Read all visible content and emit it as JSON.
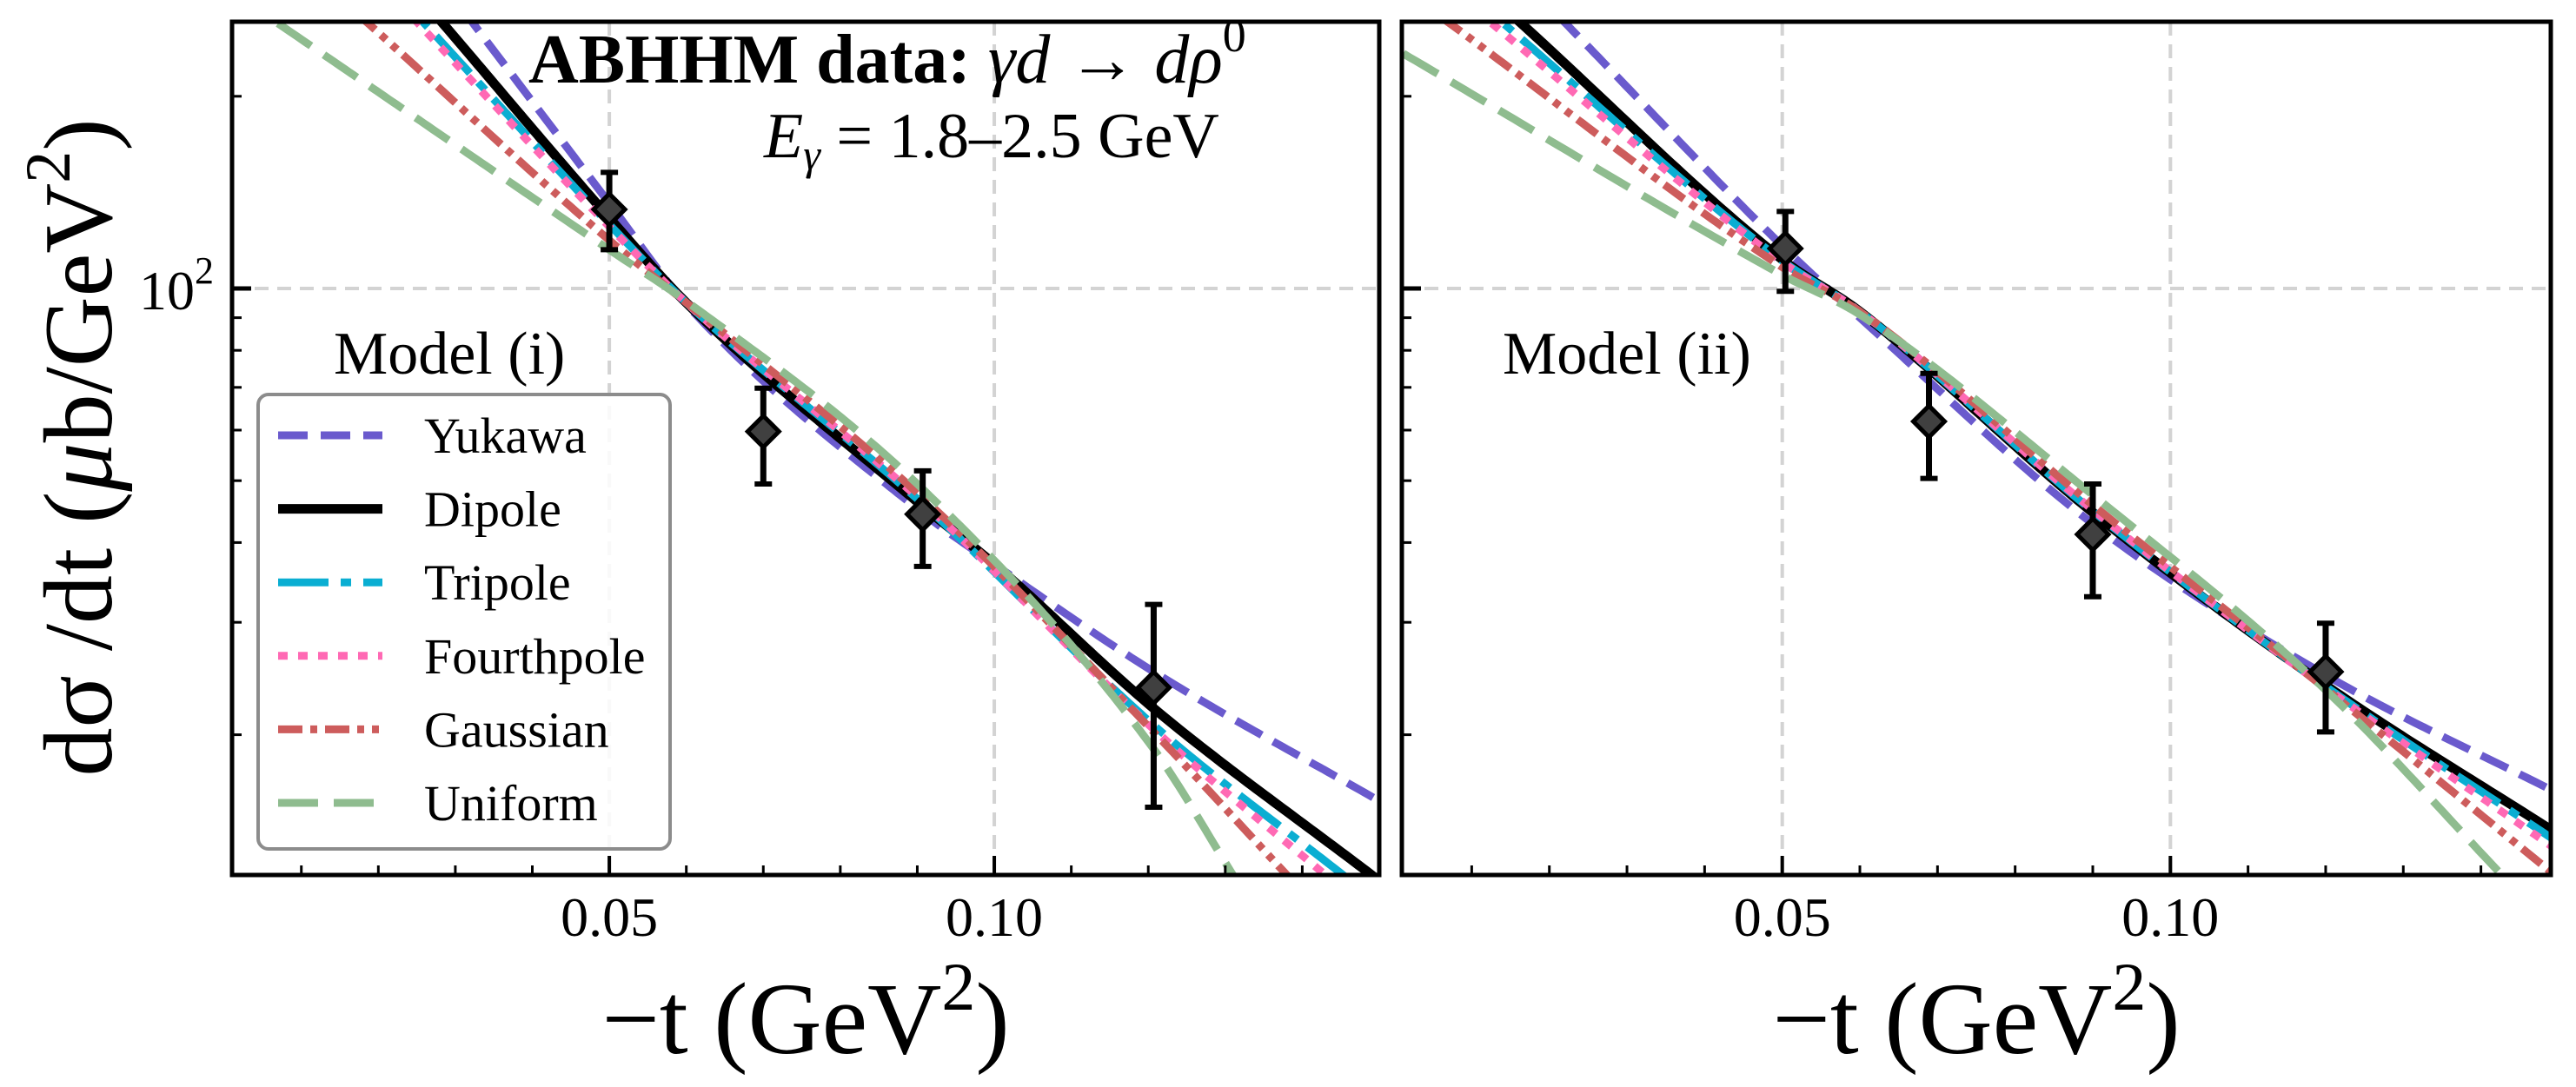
{
  "figure": {
    "title": {
      "bold": "ABHHM data:",
      "math": " γd → dρ",
      "sup": "0"
    },
    "energy": {
      "E": "E",
      "sub": "γ",
      "rest": " = 1.8–2.5 GeV"
    },
    "ylabel": {
      "pre": "dσ /dt (",
      "mu": "μ",
      "post": "b/GeV",
      "sup": "2",
      "close": ")"
    },
    "xlabel": {
      "main": "−t (GeV",
      "sup": "2",
      "close": ")"
    },
    "ytick_label": {
      "base": "10",
      "exp": "2"
    },
    "legend": {
      "entries": [
        {
          "label": "Yukawa",
          "color": "#6a5acd",
          "style": "dashed"
        },
        {
          "label": "Dipole",
          "color": "#000000",
          "style": "solid"
        },
        {
          "label": "Tripole",
          "color": "#0aaed2",
          "style": "dashdot"
        },
        {
          "label": "Fourthpole",
          "color": "#ff69b4",
          "style": "dotted"
        },
        {
          "label": "Gaussian",
          "color": "#cd5c5c",
          "style": "dashdotdot"
        },
        {
          "label": "Uniform",
          "color": "#8fbc8f",
          "style": "longdash"
        }
      ]
    },
    "colors": {
      "frame": "#000000",
      "grid": "#d3d3d3",
      "legend_border": "#8c8c8c",
      "marker_fill": "#404040",
      "marker_edge": "#000000"
    }
  },
  "chart_data": [
    {
      "type": "line",
      "panel": "left",
      "annotation": "Model (i)",
      "title": "ABHHM data: γd → dρ0",
      "subtitle": "Eγ = 1.8–2.5 GeV",
      "xlabel": "−t (GeV2)",
      "ylabel": "dσ /dt (μb/GeV2)",
      "xscale": "linear",
      "yscale": "log",
      "xlim": [
        0.001,
        0.15
      ],
      "ylim": [
        12.06,
        261.7
      ],
      "xticks_major": [
        0.05,
        0.1
      ],
      "xtick_labels": [
        "0.05",
        "0.10"
      ],
      "xticks_minor": [
        0.01,
        0.02,
        0.03,
        0.04,
        0.06,
        0.07,
        0.08,
        0.09,
        0.11,
        0.12,
        0.13,
        0.14
      ],
      "yticks_major": [
        100
      ],
      "yticks_minor": [
        20,
        30,
        40,
        50,
        60,
        70,
        80,
        90,
        200
      ],
      "ytick_labels_shown": true,
      "grid": true,
      "legend": "lower-left",
      "series": [
        {
          "name": "Yukawa",
          "x": [
            0.0334,
            0.05,
            0.06,
            0.0907,
            0.1,
            0.1207,
            0.149
          ],
          "y": [
            250,
            136,
            94.5,
            44.5,
            37,
            25.1,
            16.0
          ]
        },
        {
          "name": "Dipole",
          "x": [
            0.0284,
            0.05,
            0.06,
            0.0907,
            0.1,
            0.1207,
            0.149
          ],
          "y": [
            260,
            129,
            95,
            45.6,
            37,
            22.0,
            12.06
          ]
        },
        {
          "name": "Tripole",
          "x": [
            0.026,
            0.05,
            0.06,
            0.0907,
            0.1207,
            0.1453
          ],
          "y": [
            260,
            126,
            95,
            46,
            20.7,
            12.06
          ]
        },
        {
          "name": "Fourthpole",
          "x": [
            0.0252,
            0.05,
            0.06,
            0.0907,
            0.1207,
            0.143
          ],
          "y": [
            260,
            125,
            95,
            46.3,
            20.4,
            12.06
          ]
        },
        {
          "name": "Gaussian",
          "x": [
            0.0187,
            0.05,
            0.06,
            0.0907,
            0.1207,
            0.138
          ],
          "y": [
            260,
            119,
            95,
            47,
            20.2,
            12.06
          ]
        },
        {
          "name": "Uniform",
          "x": [
            0.007,
            0.05,
            0.06,
            0.0907,
            0.1207,
            0.131
          ],
          "y": [
            260,
            115,
            95.5,
            48.5,
            19.0,
            12.06
          ]
        }
      ],
      "data_points": {
        "name": "ABHHM data",
        "x": [
          0.05,
          0.07,
          0.0907,
          0.1207
        ],
        "y": [
          133,
          59.7,
          44.3,
          23.7
        ],
        "y_low": [
          115,
          49.4,
          36.7,
          15.4
        ],
        "y_high": [
          152,
          69.8,
          51.8,
          32.0
        ]
      }
    },
    {
      "type": "line",
      "panel": "right",
      "annotation": "Model (ii)",
      "xlabel": "−t (GeV2)",
      "xscale": "linear",
      "yscale": "log",
      "xlim": [
        0.001,
        0.149
      ],
      "ylim": [
        12.06,
        261.7
      ],
      "xticks_major": [
        0.05,
        0.1
      ],
      "xtick_labels": [
        "0.05",
        "0.10"
      ],
      "xticks_minor": [
        0.01,
        0.02,
        0.03,
        0.04,
        0.06,
        0.07,
        0.08,
        0.09,
        0.11,
        0.12,
        0.13,
        0.14
      ],
      "yticks_major": [
        100
      ],
      "yticks_minor": [
        20,
        30,
        40,
        50,
        60,
        70,
        80,
        90,
        200
      ],
      "ytick_labels_shown": false,
      "grid": true,
      "series": [
        {
          "name": "Yukawa",
          "x": [
            0.0232,
            0.05,
            0.06,
            0.09,
            0.12,
            0.149
          ],
          "y": [
            252,
            116.6,
            90,
            42.8,
            24.8,
            16.4
          ]
        },
        {
          "name": "Dipole",
          "x": [
            0.0164,
            0.05,
            0.06,
            0.09,
            0.12,
            0.149
          ],
          "y": [
            260,
            111,
            92,
            44.6,
            23.9,
            14.2
          ]
        },
        {
          "name": "Tripole",
          "x": [
            0.0141,
            0.05,
            0.06,
            0.09,
            0.12,
            0.149
          ],
          "y": [
            260,
            110.5,
            92,
            44.8,
            23.8,
            13.8
          ]
        },
        {
          "name": "Fourthpole",
          "x": [
            0.0126,
            0.05,
            0.06,
            0.09,
            0.12,
            0.149
          ],
          "y": [
            260,
            110,
            92,
            45,
            23.7,
            13.4
          ]
        },
        {
          "name": "Gaussian",
          "x": [
            0.0072,
            0.05,
            0.06,
            0.09,
            0.12,
            0.149
          ],
          "y": [
            260,
            108,
            92,
            45.8,
            23.6,
            12.2
          ]
        },
        {
          "name": "Uniform",
          "x": [
            0.001,
            0.05,
            0.06,
            0.09,
            0.12,
            0.1427
          ],
          "y": [
            234,
            105,
            91,
            47.5,
            23.5,
            12.06
          ]
        }
      ],
      "data_points": {
        "name": "ABHHM data",
        "x": [
          0.0504,
          0.0689,
          0.09,
          0.12
        ],
        "y": [
          115.5,
          61.9,
          41.2,
          25.1
        ],
        "y_low": [
          99,
          50.4,
          32.9,
          20.2
        ],
        "y_high": [
          132,
          73.6,
          49.4,
          29.9
        ]
      }
    }
  ]
}
